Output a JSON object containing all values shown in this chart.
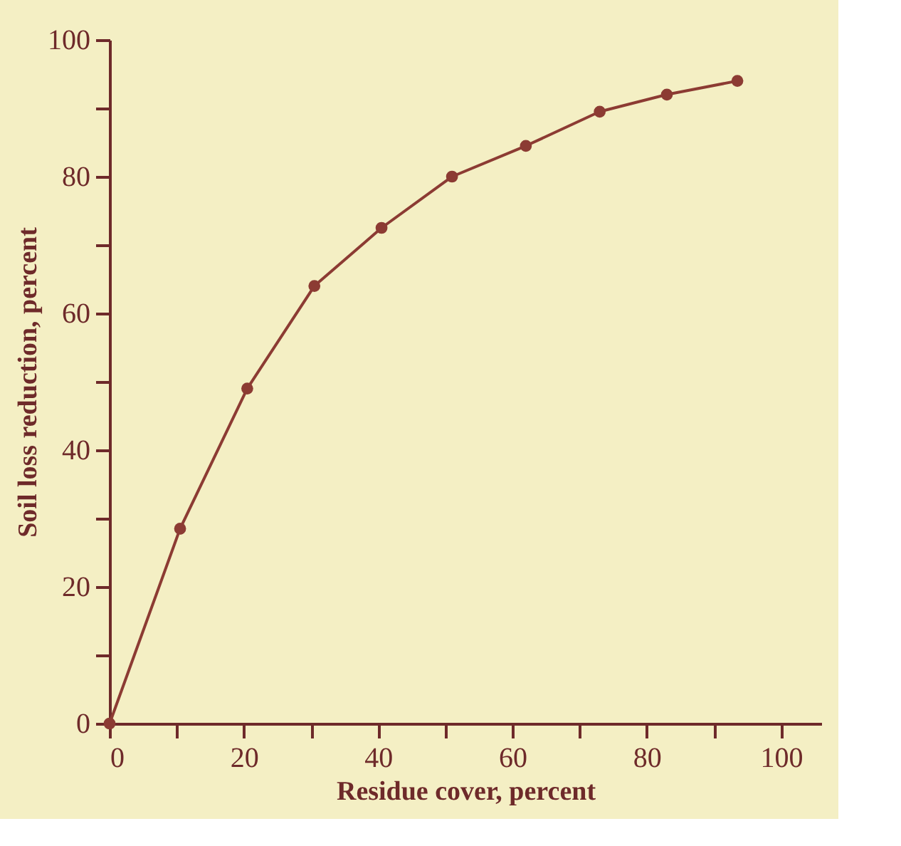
{
  "chart_data": {
    "type": "line",
    "xlabel": "Residue cover, percent",
    "ylabel": "Soil loss reduction, percent",
    "x": [
      0,
      10.5,
      20.5,
      30.5,
      40.5,
      51,
      62,
      73,
      83,
      93.5
    ],
    "series": [
      {
        "color": "#8c3b33",
        "values": [
          0,
          28.5,
          49,
          64,
          72.5,
          80,
          84.5,
          89.5,
          92,
          94
        ]
      }
    ],
    "xlim": [
      0,
      106
    ],
    "ylim": [
      0,
      100
    ],
    "xticks": [
      0,
      {
        "value": 10,
        "label": null
      },
      20,
      {
        "value": 30,
        "label": null
      },
      40,
      {
        "value": 50,
        "label": null
      },
      60,
      {
        "value": 70,
        "label": null
      },
      80,
      {
        "value": 90,
        "label": null
      },
      100
    ],
    "yticks": [
      0,
      {
        "value": 10,
        "label": null
      },
      20,
      {
        "value": 30,
        "label": null
      },
      40,
      {
        "value": 50,
        "label": null
      },
      60,
      {
        "value": 70,
        "label": null
      },
      80,
      {
        "value": 90,
        "label": null
      },
      100
    ],
    "marker": "circle",
    "line_style": "solid",
    "grid": false
  }
}
